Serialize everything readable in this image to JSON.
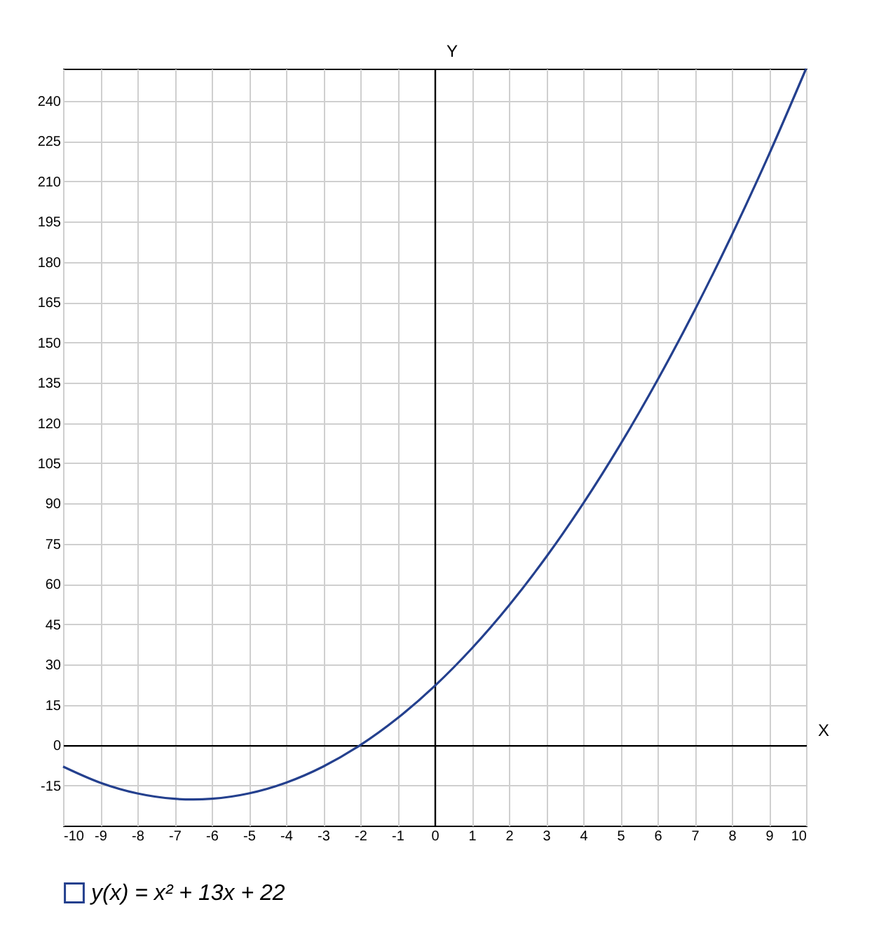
{
  "chart_data": {
    "type": "line",
    "xlabel": "X",
    "ylabel": "Y",
    "x": [
      -10,
      -9,
      -8,
      -7,
      -6.5,
      -6,
      -5,
      -4,
      -3,
      -2,
      -1,
      0,
      1,
      2,
      3,
      4,
      5,
      6,
      7,
      8,
      9,
      10
    ],
    "series": [
      {
        "name": "y(x) = x² + 13x + 22",
        "color": "#24408e",
        "values": [
          -8,
          -14,
          -18,
          -20,
          -20.25,
          -20,
          -18,
          -14,
          -8,
          0,
          10,
          22,
          36,
          52,
          70,
          90,
          112,
          136,
          162,
          190,
          220,
          252
        ]
      }
    ],
    "xlim": [
      -10,
      10
    ],
    "ylim": [
      -30,
      252
    ],
    "xticks": [
      -10,
      -9,
      -8,
      -7,
      -6,
      -5,
      -4,
      -3,
      -2,
      -1,
      0,
      1,
      2,
      3,
      4,
      5,
      6,
      7,
      8,
      9,
      10
    ],
    "yticks": [
      -15,
      0,
      15,
      30,
      45,
      60,
      75,
      90,
      105,
      120,
      135,
      150,
      165,
      180,
      195,
      210,
      225,
      240
    ],
    "grid": true,
    "legend": "bottom left",
    "marker": "none",
    "line_style": "solid"
  }
}
